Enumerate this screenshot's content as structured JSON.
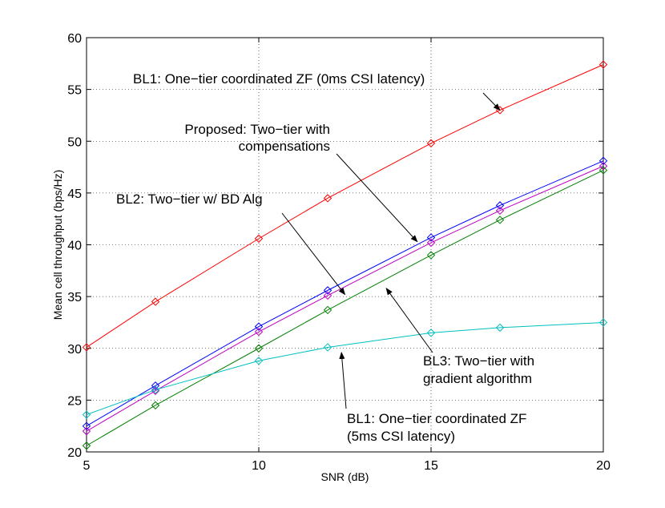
{
  "chart_data": {
    "type": "line",
    "title": "",
    "xlabel": "SNR (dB)",
    "ylabel": "Mean cell throughput (bps/Hz)",
    "xlim": [
      5,
      20
    ],
    "ylim": [
      20,
      60
    ],
    "xticks": [
      5,
      10,
      15,
      20
    ],
    "yticks": [
      20,
      25,
      30,
      35,
      40,
      45,
      50,
      55,
      60
    ],
    "grid": true,
    "series": [
      {
        "name": "BL1: One-tier coordinated ZF (0ms CSI latency)",
        "color": "#ff0000",
        "marker": "diamond",
        "x": [
          5,
          7,
          10,
          12,
          15,
          17,
          20
        ],
        "y": [
          30.1,
          34.5,
          40.6,
          44.5,
          49.8,
          53.0,
          57.4
        ]
      },
      {
        "name": "Proposed: Two-tier with compensations",
        "color": "#0000ff",
        "marker": "diamond",
        "x": [
          5,
          7,
          10,
          12,
          15,
          17,
          20
        ],
        "y": [
          22.5,
          26.4,
          32.1,
          35.6,
          40.7,
          43.8,
          48.1
        ]
      },
      {
        "name": "BL2: Two-tier w/ BD Alg",
        "color": "#bf00bf",
        "marker": "diamond",
        "x": [
          5,
          7,
          10,
          12,
          15,
          17,
          20
        ],
        "y": [
          22.0,
          25.9,
          31.6,
          35.1,
          40.2,
          43.3,
          47.6
        ]
      },
      {
        "name": "BL3: Two-tier with gradient algorithm",
        "color": "#008000",
        "marker": "diamond",
        "x": [
          5,
          7,
          10,
          12,
          15,
          17,
          20
        ],
        "y": [
          20.6,
          24.5,
          30.0,
          33.7,
          39.0,
          42.4,
          47.2
        ]
      },
      {
        "name": "BL1: One-tier coordinated ZF (5ms CSI latency)",
        "color": "#00bfbf",
        "marker": "diamond",
        "x": [
          5,
          7,
          10,
          12,
          15,
          17,
          20
        ],
        "y": [
          23.6,
          26.0,
          28.8,
          30.1,
          31.5,
          32.0,
          32.5
        ]
      }
    ],
    "annotations": [
      {
        "name": "bl1-0ms",
        "lines": [
          "BL1: One−tier coordinated ZF (0ms CSI latency)"
        ],
        "anchor": "start",
        "arrow_to": [
          17,
          53.0
        ]
      },
      {
        "name": "proposed",
        "lines": [
          "Proposed: Two−tier with",
          "compensations"
        ],
        "anchor": "end",
        "arrow_to": [
          14.6,
          40.3
        ]
      },
      {
        "name": "bl2",
        "lines": [
          "BL2: Two−tier w/ BD Alg"
        ],
        "anchor": "start",
        "arrow_to": [
          12.5,
          35.2
        ]
      },
      {
        "name": "bl3",
        "lines": [
          "BL3: Two−tier with",
          "gradient algorithm"
        ],
        "anchor": "start",
        "arrow_to": [
          13.7,
          35.8
        ]
      },
      {
        "name": "bl1-5ms",
        "lines": [
          "BL1: One−tier coordinated ZF",
          "(5ms CSI latency)"
        ],
        "anchor": "start",
        "arrow_to": [
          12.4,
          29.6
        ]
      }
    ]
  }
}
